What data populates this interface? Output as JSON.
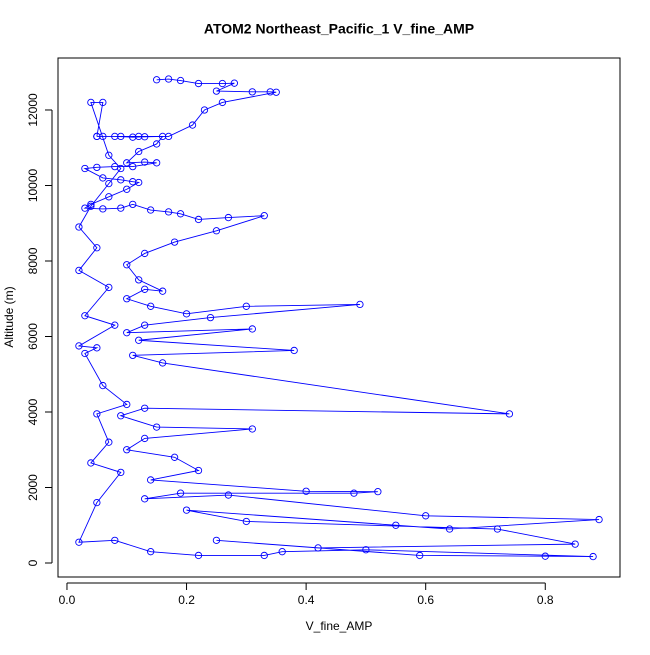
{
  "chart_data": {
    "type": "line",
    "title": "ATOM2 Northeast_Pacific_1 V_fine_AMP",
    "x_label": "V_fine_AMP",
    "y_label": "Altitude (m)",
    "x": [
      0.15,
      0.17,
      0.19,
      0.22,
      0.26,
      0.28,
      0.25,
      0.31,
      0.34,
      0.35,
      0.26,
      0.23,
      0.21,
      0.17,
      0.12,
      0.09,
      0.06,
      0.05,
      0.08,
      0.11,
      0.13,
      0.16,
      0.15,
      0.12,
      0.1,
      0.13,
      0.15,
      0.11,
      0.08,
      0.05,
      0.03,
      0.06,
      0.09,
      0.11,
      0.12,
      0.1,
      0.07,
      0.04,
      0.03,
      0.06,
      0.09,
      0.11,
      0.14,
      0.17,
      0.19,
      0.22,
      0.27,
      0.33,
      0.25,
      0.18,
      0.13,
      0.1,
      0.12,
      0.16,
      0.13,
      0.1,
      0.14,
      0.2,
      0.3,
      0.49,
      0.24,
      0.13,
      0.1,
      0.31,
      0.12,
      0.38,
      0.11,
      0.16,
      0.74,
      0.13,
      0.09,
      0.15,
      0.31,
      0.13,
      0.1,
      0.18,
      0.22,
      0.14,
      0.4,
      0.52,
      0.48,
      0.19,
      0.13,
      0.27,
      0.6,
      0.89,
      0.64,
      0.55,
      0.2,
      0.3,
      0.72,
      0.85,
      0.42,
      0.25,
      0.59,
      0.8,
      0.88,
      0.5,
      0.36,
      0.33,
      0.22,
      0.14,
      0.08,
      0.02,
      0.05,
      0.09,
      0.04,
      0.07,
      0.05,
      0.1,
      0.06,
      0.03,
      0.05,
      0.02,
      0.08,
      0.03,
      0.07,
      0.02,
      0.05,
      0.02,
      0.04,
      0.07,
      0.09,
      0.07,
      0.04,
      0.06,
      0.05
    ],
    "series": [
      {
        "name": "V_fine_AMP",
        "color": "#0000ff",
        "values": [
          12800,
          12820,
          12780,
          12700,
          12700,
          12710,
          12500,
          12480,
          12480,
          12470,
          12200,
          12000,
          11600,
          11300,
          11300,
          11300,
          11300,
          11300,
          11300,
          11280,
          11290,
          11300,
          11100,
          10900,
          10600,
          10620,
          10600,
          10500,
          10500,
          10480,
          10450,
          10200,
          10150,
          10100,
          10080,
          9900,
          9700,
          9500,
          9400,
          9380,
          9400,
          9500,
          9350,
          9300,
          9250,
          9100,
          9150,
          9200,
          8800,
          8500,
          8200,
          7900,
          7500,
          7200,
          7250,
          7000,
          6800,
          6600,
          6800,
          6850,
          6500,
          6300,
          6100,
          6200,
          5900,
          5630,
          5500,
          5300,
          3950,
          4100,
          3900,
          3600,
          3550,
          3300,
          3000,
          2800,
          2450,
          2200,
          1900,
          1890,
          1850,
          1850,
          1700,
          1800,
          1250,
          1150,
          900,
          1000,
          1400,
          1100,
          900,
          500,
          400,
          600,
          200,
          180,
          170,
          350,
          300,
          200,
          200,
          300,
          600,
          550,
          1600,
          2400,
          2650,
          3200,
          3950,
          4200,
          4700,
          5550,
          5700,
          5750,
          6300,
          6550,
          7300,
          7750,
          8350,
          8900,
          9450,
          10050,
          10450,
          10800,
          12200,
          12200,
          11300
        ]
      }
    ],
    "xlim": [
      -0.015,
      0.925
    ],
    "ylim": [
      -371,
      13377
    ],
    "xticks": [
      {
        "value": 0,
        "label": "0.0"
      },
      {
        "value": 0.2,
        "label": "0.2"
      },
      {
        "value": 0.4,
        "label": "0.4"
      },
      {
        "value": 0.6,
        "label": "0.6"
      },
      {
        "value": 0.8,
        "label": "0.8"
      }
    ],
    "yticks": [
      0,
      2000,
      4000,
      6000,
      8000,
      10000,
      12000
    ]
  }
}
